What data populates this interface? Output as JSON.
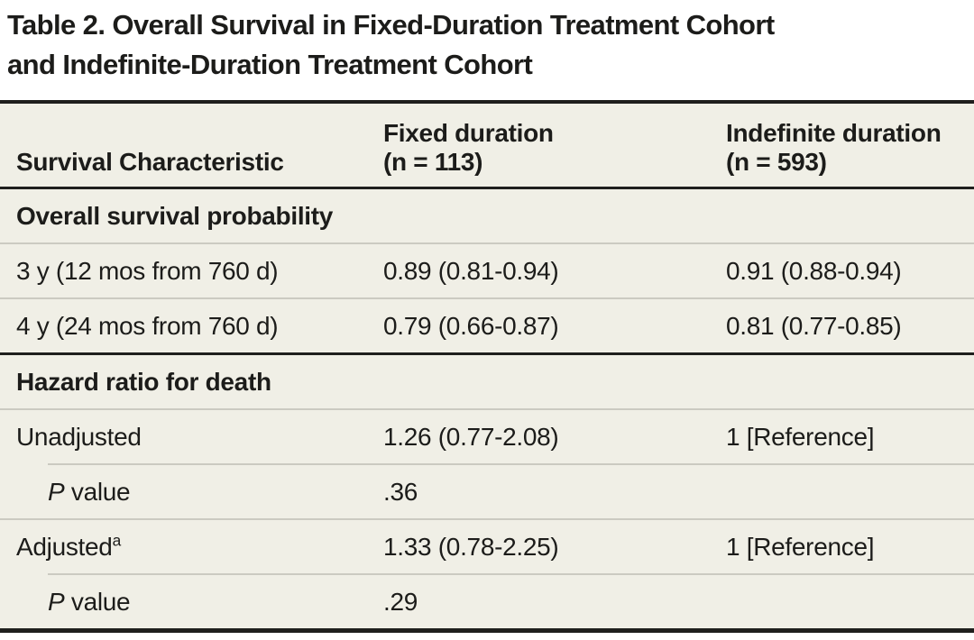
{
  "title": {
    "line1": "Table 2. Overall Survival in Fixed-Duration Treatment Cohort",
    "line2": "and Indefinite-Duration Treatment Cohort"
  },
  "table": {
    "header": {
      "col1": "Survival Characteristic",
      "col2_line1": "Fixed duration",
      "col2_line2": "(n = 113)",
      "col3_line1": "Indefinite duration",
      "col3_line2": "(n = 593)"
    },
    "sections": [
      {
        "header": "Overall survival probability",
        "rows": [
          {
            "label": "3 y (12 mos from 760 d)",
            "fixed": "0.89 (0.81-0.94)",
            "indefinite": "0.91 (0.88-0.94)"
          },
          {
            "label": "4 y (24 mos from 760 d)",
            "fixed": "0.79 (0.66-0.87)",
            "indefinite": "0.81 (0.77-0.85)"
          }
        ]
      },
      {
        "header": "Hazard ratio for death",
        "rows": [
          {
            "label": "Unadjusted",
            "fixed": "1.26 (0.77-2.08)",
            "indefinite": "1 [Reference]"
          },
          {
            "italic_prefix": "P",
            "label": "value",
            "indent": true,
            "fixed": ".36",
            "indefinite": ""
          },
          {
            "label": "Adjusted",
            "superscript": "a",
            "fixed": "1.33 (0.78-2.25)",
            "indefinite": "1 [Reference]"
          },
          {
            "italic_prefix": "P",
            "label": "value",
            "indent": true,
            "fixed": ".29",
            "indefinite": ""
          }
        ]
      }
    ]
  },
  "colors": {
    "table_background": "#f0efe6",
    "rule_dark": "#1f1f1d",
    "divider": "#cbcac1",
    "text": "#1c1c1a"
  }
}
